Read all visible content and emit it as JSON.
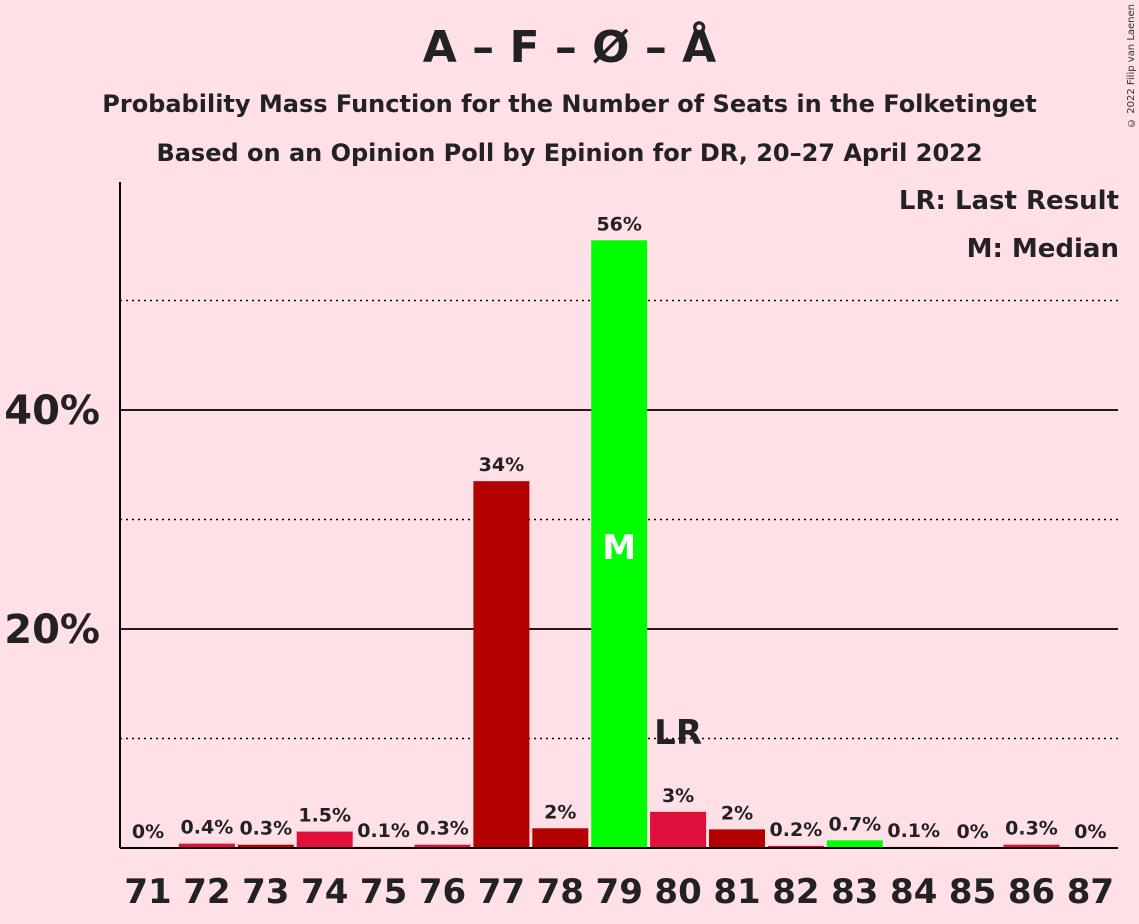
{
  "title": "A – F – Ø – Å",
  "subtitle": "Probability Mass Function for the Number of Seats in the Folketinget",
  "subtitle2": "Based on an Opinion Poll by Epinion for DR, 20–27 April 2022",
  "copyright": "© 2022 Filip van Laenen",
  "legend": {
    "last_result": "LR: Last Result",
    "median": "M: Median"
  },
  "colors": {
    "background": "#ffe0e6",
    "dark_red": "#b30000",
    "crimson": "#e0103a",
    "green": "#00ff00"
  },
  "chart_data": {
    "type": "bar",
    "categories": [
      "71",
      "72",
      "73",
      "74",
      "75",
      "76",
      "77",
      "78",
      "79",
      "80",
      "81",
      "82",
      "83",
      "84",
      "85",
      "86",
      "87"
    ],
    "values": [
      0,
      0.4,
      0.3,
      1.5,
      0.1,
      0.3,
      33.5,
      1.8,
      55.5,
      3.3,
      1.7,
      0.2,
      0.7,
      0.1,
      0,
      0.3,
      0
    ],
    "labels": [
      "0%",
      "0.4%",
      "0.3%",
      "1.5%",
      "0.1%",
      "0.3%",
      "34%",
      "2%",
      "56%",
      "3%",
      "2%",
      "0.2%",
      "0.7%",
      "0.1%",
      "0%",
      "0.3%",
      "0%"
    ],
    "bar_colors": [
      "crimson",
      "crimson",
      "dark_red",
      "crimson",
      "crimson",
      "crimson",
      "dark_red",
      "dark_red",
      "green",
      "crimson",
      "dark_red",
      "crimson",
      "green",
      "crimson",
      "crimson",
      "crimson",
      "crimson"
    ],
    "y_ticks": [
      "20%",
      "40%"
    ],
    "ylim": [
      0,
      60
    ],
    "grid": "solid lines at 20% and 40%, dotted lines at 10%, 30% and 50%",
    "median": {
      "seats": "79",
      "marker": "M"
    },
    "last_result": {
      "seats": "80",
      "marker": "LR"
    }
  }
}
